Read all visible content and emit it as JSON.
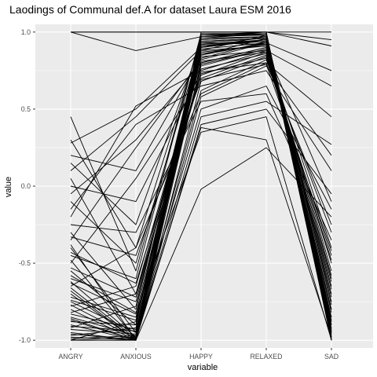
{
  "chart_data": {
    "type": "line",
    "title": "Laodings of Communal def.A for dataset Laura ESM 2016",
    "xlabel": "variable",
    "ylabel": "value",
    "categories": [
      "ANGRY",
      "ANXIOUS",
      "HAPPY",
      "RELAXED",
      "SAD"
    ],
    "ylim": [
      -1.05,
      1.05
    ],
    "yticks": [
      1.0,
      0.5,
      0.0,
      -0.5,
      -1.0
    ],
    "ytick_labels": [
      "1.0",
      "0.5",
      "0.0",
      "-0.5",
      "-1.0"
    ],
    "grid": true,
    "panel_background": "#ebebeb",
    "grid_color": "#ffffff",
    "line_color": "#000000",
    "series": [
      {
        "values": [
          1.0,
          1.0,
          1.0,
          1.0,
          1.0
        ]
      },
      {
        "values": [
          1.0,
          1.0,
          1.0,
          1.0,
          0.95
        ]
      },
      {
        "values": [
          1.0,
          0.88,
          0.97,
          1.0,
          0.91
        ]
      },
      {
        "values": [
          0.45,
          -0.55,
          0.98,
          0.99,
          -0.9
        ]
      },
      {
        "values": [
          0.3,
          -0.4,
          0.95,
          0.97,
          -0.85
        ]
      },
      {
        "values": [
          0.28,
          0.5,
          0.9,
          0.95,
          -1.0
        ]
      },
      {
        "values": [
          0.15,
          -0.25,
          0.93,
          0.92,
          -0.7
        ]
      },
      {
        "values": [
          0.1,
          0.45,
          0.88,
          0.98,
          -0.95
        ]
      },
      {
        "values": [
          0.05,
          -0.7,
          0.85,
          0.96,
          -0.98
        ]
      },
      {
        "values": [
          -0.05,
          0.3,
          0.8,
          0.9,
          -0.6
        ]
      },
      {
        "values": [
          -0.1,
          -0.5,
          0.92,
          0.94,
          -0.8
        ]
      },
      {
        "values": [
          -0.2,
          0.52,
          0.75,
          0.88,
          0.65
        ]
      },
      {
        "values": [
          -0.3,
          -0.8,
          0.96,
          0.99,
          -1.0
        ]
      },
      {
        "values": [
          -0.35,
          0.25,
          0.82,
          0.93,
          0.75
        ]
      },
      {
        "values": [
          -0.4,
          -0.95,
          0.9,
          0.97,
          -0.92
        ]
      },
      {
        "values": [
          -0.45,
          -0.6,
          0.99,
          0.98,
          -0.75
        ]
      },
      {
        "values": [
          -0.5,
          0.05,
          0.7,
          0.85,
          -0.5
        ]
      },
      {
        "values": [
          -0.55,
          -0.9,
          0.94,
          0.96,
          -0.95
        ]
      },
      {
        "values": [
          -0.6,
          -0.75,
          0.87,
          0.91,
          -0.65
        ]
      },
      {
        "values": [
          -0.62,
          -0.98,
          0.97,
          0.99,
          -1.0
        ]
      },
      {
        "values": [
          -0.65,
          -0.4,
          0.6,
          0.8,
          0.45
        ]
      },
      {
        "values": [
          -0.7,
          -1.0,
          0.91,
          0.95,
          -0.88
        ]
      },
      {
        "values": [
          -0.72,
          -0.85,
          0.78,
          0.89,
          -0.55
        ]
      },
      {
        "values": [
          -0.75,
          -0.95,
          0.98,
          1.0,
          -1.0
        ]
      },
      {
        "values": [
          -0.78,
          -0.65,
          0.83,
          0.94,
          -0.82
        ]
      },
      {
        "values": [
          -0.8,
          -1.0,
          0.95,
          0.97,
          -0.97
        ]
      },
      {
        "values": [
          -0.82,
          -0.7,
          0.72,
          0.87,
          -0.4
        ]
      },
      {
        "values": [
          -0.85,
          -0.97,
          0.89,
          0.93,
          -0.9
        ]
      },
      {
        "values": [
          -0.88,
          -0.9,
          0.99,
          0.99,
          -1.0
        ]
      },
      {
        "values": [
          -0.9,
          -1.0,
          0.8,
          0.9,
          -0.72
        ]
      },
      {
        "values": [
          -0.92,
          -0.78,
          0.93,
          0.96,
          -0.94
        ]
      },
      {
        "values": [
          -0.95,
          -1.0,
          0.97,
          0.98,
          -1.0
        ]
      },
      {
        "values": [
          -0.97,
          -0.92,
          0.86,
          0.92,
          -0.85
        ]
      },
      {
        "values": [
          -1.0,
          -1.0,
          1.0,
          1.0,
          -1.0
        ]
      },
      {
        "values": [
          -1.0,
          -0.98,
          0.92,
          0.95,
          -0.98
        ]
      },
      {
        "values": [
          -1.0,
          -0.88,
          0.76,
          0.86,
          -0.62
        ]
      },
      {
        "values": [
          -0.98,
          -1.0,
          0.68,
          0.84,
          -0.45
        ]
      },
      {
        "values": [
          -0.93,
          -0.96,
          0.62,
          0.82,
          -0.3
        ]
      },
      {
        "values": [
          -0.87,
          -1.0,
          0.58,
          0.78,
          0.2
        ]
      },
      {
        "values": [
          -0.83,
          -0.93,
          0.5,
          0.65,
          -0.15
        ]
      },
      {
        "values": [
          -0.77,
          -0.99,
          0.45,
          0.55,
          0.27
        ]
      },
      {
        "values": [
          -0.68,
          -1.0,
          0.4,
          0.5,
          -0.05
        ]
      },
      {
        "values": [
          -0.58,
          -0.82,
          0.35,
          0.45,
          -1.0
        ]
      },
      {
        "values": [
          -0.48,
          -0.99,
          0.38,
          0.3,
          -0.98
        ]
      },
      {
        "values": [
          -0.38,
          -1.0,
          -0.02,
          0.25,
          -0.2
        ]
      },
      {
        "values": [
          -0.25,
          -0.3,
          0.55,
          0.6,
          -0.35
        ]
      },
      {
        "values": [
          -0.15,
          0.4,
          0.65,
          0.75,
          0.1
        ]
      },
      {
        "values": [
          0.0,
          -0.1,
          0.74,
          0.8,
          -0.25
        ]
      },
      {
        "values": [
          0.2,
          0.1,
          0.84,
          0.88,
          -0.1
        ]
      },
      {
        "values": [
          -0.66,
          -0.99,
          0.91,
          0.94,
          -0.93
        ]
      },
      {
        "values": [
          -0.74,
          -0.87,
          0.96,
          0.97,
          -0.99
        ]
      },
      {
        "values": [
          -0.86,
          -1.0,
          0.88,
          0.91,
          -0.8
        ]
      },
      {
        "values": [
          -0.91,
          -0.94,
          0.79,
          0.89,
          -0.67
        ]
      },
      {
        "values": [
          -0.96,
          -1.0,
          0.85,
          0.93,
          -0.87
        ]
      },
      {
        "values": [
          -0.99,
          -0.97,
          0.94,
          0.96,
          -0.96
        ]
      },
      {
        "values": [
          -0.53,
          -0.72,
          0.81,
          0.87,
          -0.58
        ]
      },
      {
        "values": [
          -0.43,
          -0.63,
          0.73,
          0.83,
          -0.48
        ]
      },
      {
        "values": [
          -0.33,
          -0.45,
          0.69,
          0.79,
          -0.42
        ]
      },
      {
        "values": [
          -0.63,
          -0.83,
          0.9,
          0.95,
          -0.77
        ]
      }
    ]
  }
}
